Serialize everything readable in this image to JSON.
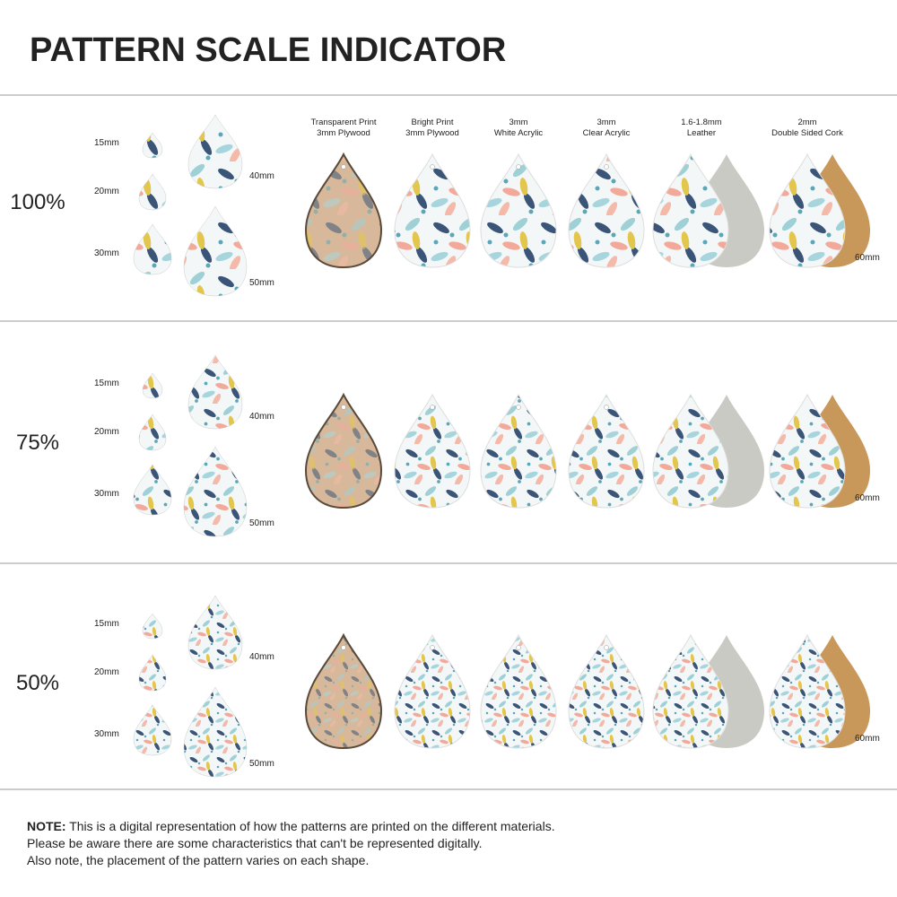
{
  "title": "PATTERN SCALE INDICATOR",
  "materials": [
    [
      "Transparent Print",
      "3mm Plywood"
    ],
    [
      "Bright Print",
      "3mm Plywood"
    ],
    [
      "3mm",
      "White Acrylic"
    ],
    [
      "3mm",
      "Clear Acrylic"
    ],
    [
      "1.6-1.8mm",
      "Leather"
    ],
    [
      "2mm",
      "Double Sided Cork"
    ]
  ],
  "sections": [
    {
      "scale": "100%",
      "sizes": [
        "15mm",
        "20mm",
        "30mm",
        "40mm",
        "50mm"
      ],
      "large_size": "60mm"
    },
    {
      "scale": "75%",
      "sizes": [
        "15mm",
        "20mm",
        "30mm",
        "40mm",
        "50mm"
      ],
      "large_size": "60mm"
    },
    {
      "scale": "50%",
      "sizes": [
        "15mm",
        "20mm",
        "30mm",
        "40mm",
        "50mm"
      ],
      "large_size": "60mm"
    }
  ],
  "note": {
    "label": "NOTE:",
    "lines": [
      "This is a digital representation of how the patterns are printed on the different materials.",
      "Please be aware there are some characteristics that can't be represented digitally.",
      "Also note, the placement of the pattern varies on each shape."
    ]
  }
}
